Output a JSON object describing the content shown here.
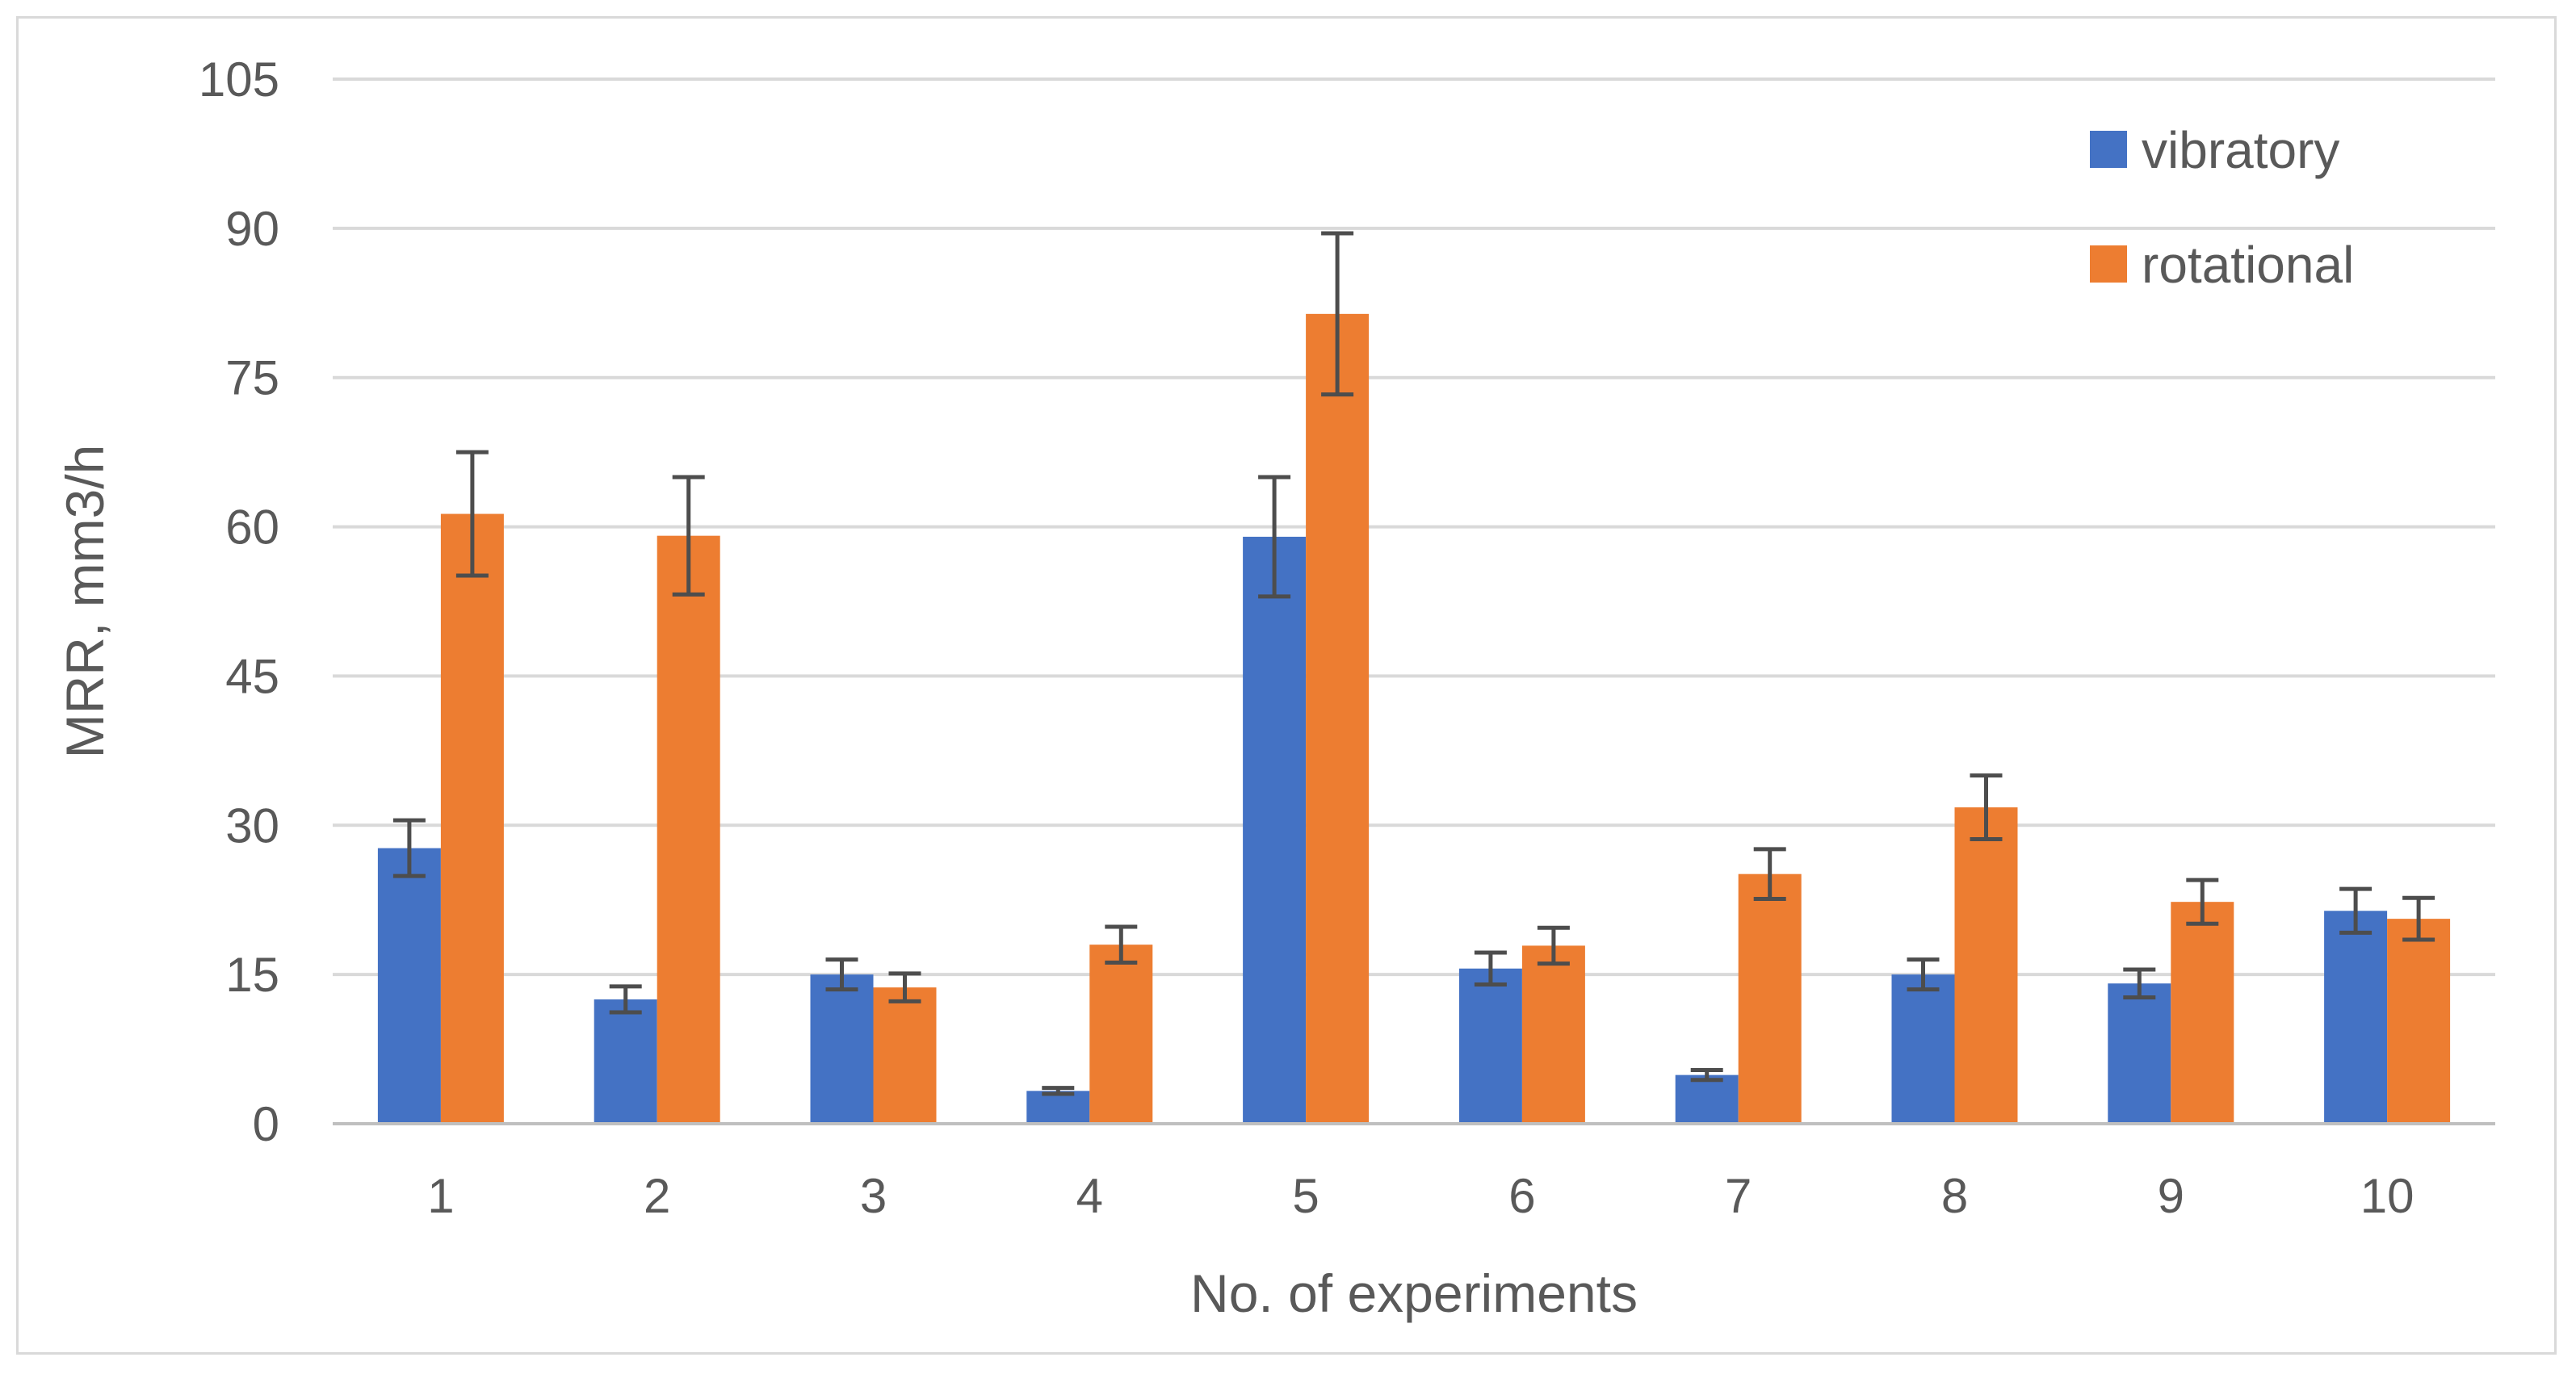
{
  "chart_data": {
    "type": "bar",
    "title": "",
    "xlabel": "No. of experiments",
    "ylabel": "MRR, mm3/h",
    "ylim": [
      0,
      105
    ],
    "yticks": [
      0,
      15,
      30,
      45,
      60,
      75,
      90,
      105
    ],
    "grid": true,
    "legend_position": "top-right",
    "categories": [
      "1",
      "2",
      "3",
      "4",
      "5",
      "6",
      "7",
      "8",
      "9",
      "10"
    ],
    "series": [
      {
        "name": "vibratory",
        "color": "#4472c4",
        "values": [
          27.7,
          12.5,
          15.0,
          3.3,
          59.0,
          15.6,
          4.9,
          15.0,
          14.1,
          21.4
        ],
        "error": [
          2.8,
          1.3,
          1.5,
          0.3,
          6.0,
          1.6,
          0.5,
          1.5,
          1.4,
          2.2
        ]
      },
      {
        "name": "rotational",
        "color": "#ed7d31",
        "values": [
          61.3,
          59.1,
          13.7,
          18.0,
          81.4,
          17.9,
          25.1,
          31.8,
          22.3,
          20.6
        ],
        "error": [
          6.2,
          5.9,
          1.4,
          1.8,
          8.1,
          1.8,
          2.5,
          3.2,
          2.2,
          2.1
        ]
      }
    ],
    "error_bar_color": "#4d4d4d"
  }
}
